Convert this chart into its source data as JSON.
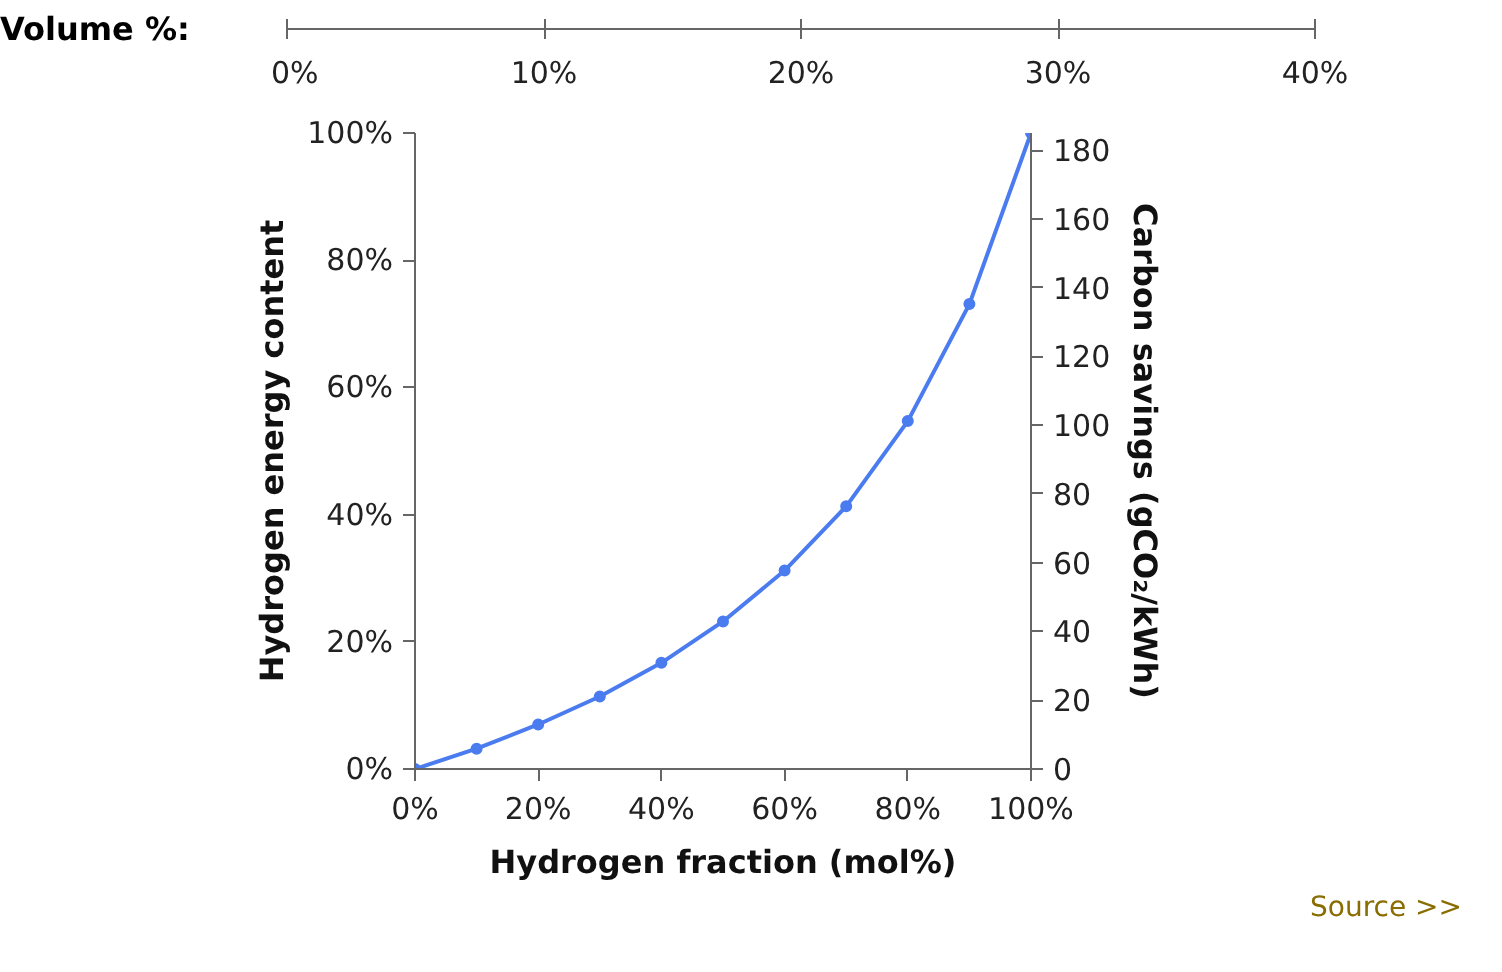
{
  "chart_data": {
    "type": "line",
    "xlabel": "Hydrogen fraction (mol%)",
    "ylabel": "Hydrogen energy content",
    "y2label": "Carbon savings (gCO₂/kWh)",
    "x2label": "Volume %:",
    "x": [
      0,
      10,
      20,
      30,
      40,
      50,
      60,
      70,
      80,
      90,
      100
    ],
    "series": [
      {
        "color": "#4a7cf0",
        "values": [
          0,
          3.2,
          7.0,
          11.4,
          16.7,
          23.2,
          31.2,
          41.3,
          54.7,
          73.1,
          100
        ]
      }
    ],
    "xlim": [
      0,
      100
    ],
    "xticks": [
      {
        "value": 0,
        "label": "0%"
      },
      {
        "value": 20,
        "label": "20%"
      },
      {
        "value": 40,
        "label": "40%"
      },
      {
        "value": 60,
        "label": "60%"
      },
      {
        "value": 80,
        "label": "80%"
      },
      {
        "value": 100,
        "label": "100%"
      }
    ],
    "ylim": [
      0,
      100
    ],
    "yticks": [
      {
        "value": 0,
        "label": "0%"
      },
      {
        "value": 20,
        "label": "20%"
      },
      {
        "value": 40,
        "label": "40%"
      },
      {
        "value": 60,
        "label": "60%"
      },
      {
        "value": 80,
        "label": "80%"
      },
      {
        "value": 100,
        "label": "100%"
      }
    ],
    "y2lim": [
      0,
      185
    ],
    "y2ticks": [
      0,
      20,
      40,
      60,
      80,
      100,
      120,
      140,
      160,
      180
    ],
    "x2lim": [
      0,
      40
    ],
    "x2ticks": [
      {
        "value": 0,
        "label": "0%"
      },
      {
        "value": 10,
        "label": "10%"
      },
      {
        "value": 20,
        "label": "20%"
      },
      {
        "value": 30,
        "label": "30%"
      },
      {
        "value": 40,
        "label": "40%"
      }
    ],
    "annotations": [
      "Source >>"
    ],
    "marker": "circle",
    "line_style": "solid",
    "grid": false
  }
}
